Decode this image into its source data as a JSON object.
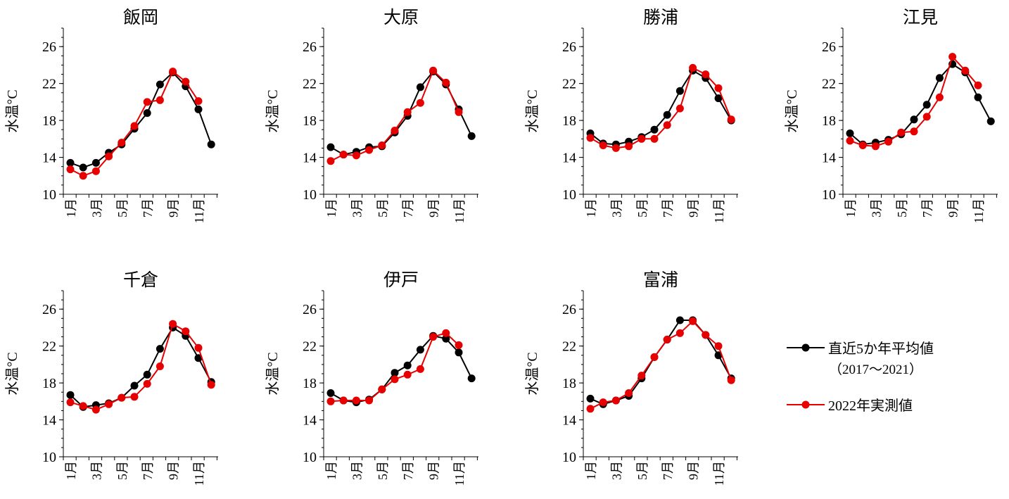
{
  "y_axis": {
    "label": "水温°C",
    "ticks": [
      10,
      14,
      18,
      22,
      26
    ],
    "ylim": [
      10,
      28
    ]
  },
  "month_tick_labels": [
    "1月",
    "3月",
    "5月",
    "7月",
    "9月",
    "11月"
  ],
  "legend": {
    "placement": "right-of-bottom-row",
    "avg_label": "直近5か年平均値",
    "avg_period": "（2017～2021）",
    "actual_label": "2022年実測値"
  },
  "colors": {
    "avg": "#000000",
    "actual": "#e60000"
  },
  "chart_data": [
    {
      "type": "line",
      "title": "飯岡",
      "x": [
        1,
        2,
        3,
        4,
        5,
        6,
        7,
        8,
        9,
        10,
        11,
        12
      ],
      "ylim": [
        10,
        28
      ],
      "series": [
        {
          "key": "avg",
          "values": [
            13.4,
            12.9,
            13.4,
            14.5,
            15.4,
            17.1,
            18.8,
            21.9,
            23.2,
            21.7,
            19.2,
            15.4
          ]
        },
        {
          "key": "actual",
          "values": [
            12.7,
            12.0,
            12.5,
            14.1,
            15.6,
            17.4,
            20.0,
            20.2,
            23.3,
            22.2,
            20.1,
            null
          ]
        }
      ]
    },
    {
      "type": "line",
      "title": "大原",
      "x": [
        1,
        2,
        3,
        4,
        5,
        6,
        7,
        8,
        9,
        10,
        11,
        12
      ],
      "ylim": [
        10,
        28
      ],
      "series": [
        {
          "key": "avg",
          "values": [
            15.1,
            14.3,
            14.6,
            15.1,
            15.2,
            16.7,
            18.5,
            21.6,
            23.3,
            21.9,
            19.2,
            16.3
          ]
        },
        {
          "key": "actual",
          "values": [
            13.6,
            14.3,
            14.2,
            14.8,
            15.3,
            16.9,
            18.9,
            19.9,
            23.4,
            22.1,
            18.9,
            null
          ]
        }
      ]
    },
    {
      "type": "line",
      "title": "勝浦",
      "x": [
        1,
        2,
        3,
        4,
        5,
        6,
        7,
        8,
        9,
        10,
        11,
        12
      ],
      "ylim": [
        10,
        28
      ],
      "series": [
        {
          "key": "avg",
          "values": [
            16.6,
            15.5,
            15.4,
            15.7,
            16.2,
            17.0,
            18.6,
            21.2,
            23.4,
            22.6,
            20.4,
            18.0
          ]
        },
        {
          "key": "actual",
          "values": [
            16.1,
            15.3,
            15.0,
            15.2,
            16.0,
            16.0,
            17.5,
            19.3,
            23.7,
            23.0,
            21.5,
            18.1
          ]
        }
      ]
    },
    {
      "type": "line",
      "title": "江見",
      "x": [
        1,
        2,
        3,
        4,
        5,
        6,
        7,
        8,
        9,
        10,
        11,
        12
      ],
      "ylim": [
        10,
        28
      ],
      "series": [
        {
          "key": "avg",
          "values": [
            16.6,
            15.4,
            15.6,
            15.9,
            16.5,
            18.1,
            19.7,
            22.6,
            24.1,
            23.2,
            20.5,
            17.9
          ]
        },
        {
          "key": "actual",
          "values": [
            15.8,
            15.3,
            15.2,
            15.7,
            16.7,
            16.8,
            18.4,
            20.5,
            24.9,
            23.4,
            21.8,
            null
          ]
        }
      ]
    },
    {
      "type": "line",
      "title": "千倉",
      "x": [
        1,
        2,
        3,
        4,
        5,
        6,
        7,
        8,
        9,
        10,
        11,
        12
      ],
      "ylim": [
        10,
        28
      ],
      "series": [
        {
          "key": "avg",
          "values": [
            16.7,
            15.4,
            15.6,
            15.8,
            16.4,
            17.7,
            18.9,
            21.7,
            24.0,
            23.1,
            20.7,
            18.1
          ]
        },
        {
          "key": "actual",
          "values": [
            15.9,
            15.5,
            15.1,
            15.7,
            16.4,
            16.5,
            17.9,
            19.8,
            24.4,
            23.6,
            21.8,
            17.8
          ]
        }
      ]
    },
    {
      "type": "line",
      "title": "伊戸",
      "x": [
        1,
        2,
        3,
        4,
        5,
        6,
        7,
        8,
        9,
        10,
        11,
        12
      ],
      "ylim": [
        10,
        28
      ],
      "series": [
        {
          "key": "avg",
          "values": [
            16.9,
            16.1,
            15.9,
            16.2,
            17.3,
            19.1,
            19.9,
            21.6,
            23.1,
            22.8,
            21.3,
            18.5
          ]
        },
        {
          "key": "actual",
          "values": [
            16.0,
            16.1,
            16.1,
            16.1,
            17.3,
            18.4,
            18.9,
            19.5,
            23.0,
            23.4,
            22.1,
            null
          ]
        }
      ]
    },
    {
      "type": "line",
      "title": "富浦",
      "x": [
        1,
        2,
        3,
        4,
        5,
        6,
        7,
        8,
        9,
        10,
        11,
        12
      ],
      "ylim": [
        10,
        28
      ],
      "series": [
        {
          "key": "avg",
          "values": [
            16.3,
            15.7,
            16.1,
            16.6,
            18.5,
            20.8,
            22.7,
            24.8,
            24.8,
            23.2,
            21.0,
            18.5
          ]
        },
        {
          "key": "actual",
          "values": [
            15.2,
            15.9,
            16.1,
            16.9,
            18.8,
            20.8,
            22.7,
            23.4,
            24.7,
            23.2,
            22.0,
            18.3
          ]
        }
      ]
    }
  ]
}
